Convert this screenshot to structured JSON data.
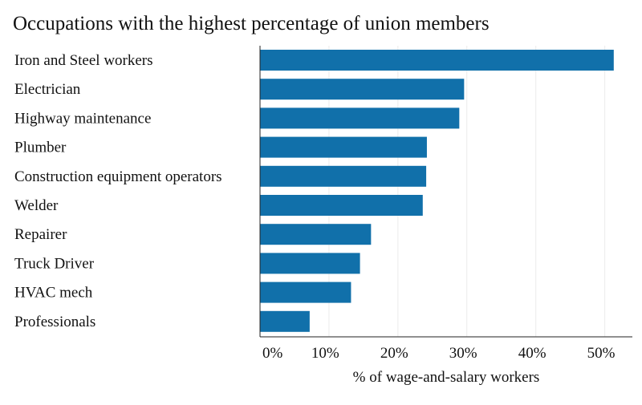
{
  "chart_data": {
    "type": "bar",
    "orientation": "horizontal",
    "title": "Occupations with the highest percentage of union members",
    "xlabel": "% of wage-and-salary workers",
    "ylabel": "",
    "categories": [
      "Iron and Steel workers",
      "Electrician",
      "Highway maintenance",
      "Plumber",
      "Construction equipment operators",
      "Welder",
      "Repairer",
      "Truck Driver",
      "HVAC mech",
      "Professionals"
    ],
    "values": [
      51.3,
      29.6,
      28.9,
      24.2,
      24.1,
      23.6,
      16.1,
      14.5,
      13.2,
      7.2
    ],
    "xlim": [
      0,
      54
    ],
    "xticks": [
      0,
      10,
      20,
      30,
      40,
      50
    ],
    "xtick_labels": [
      "0%",
      "10%",
      "20%",
      "30%",
      "40%",
      "50%"
    ],
    "grid": true,
    "legend": "none",
    "bar_color": "#1170aa",
    "grid_color": "#ebebeb"
  }
}
